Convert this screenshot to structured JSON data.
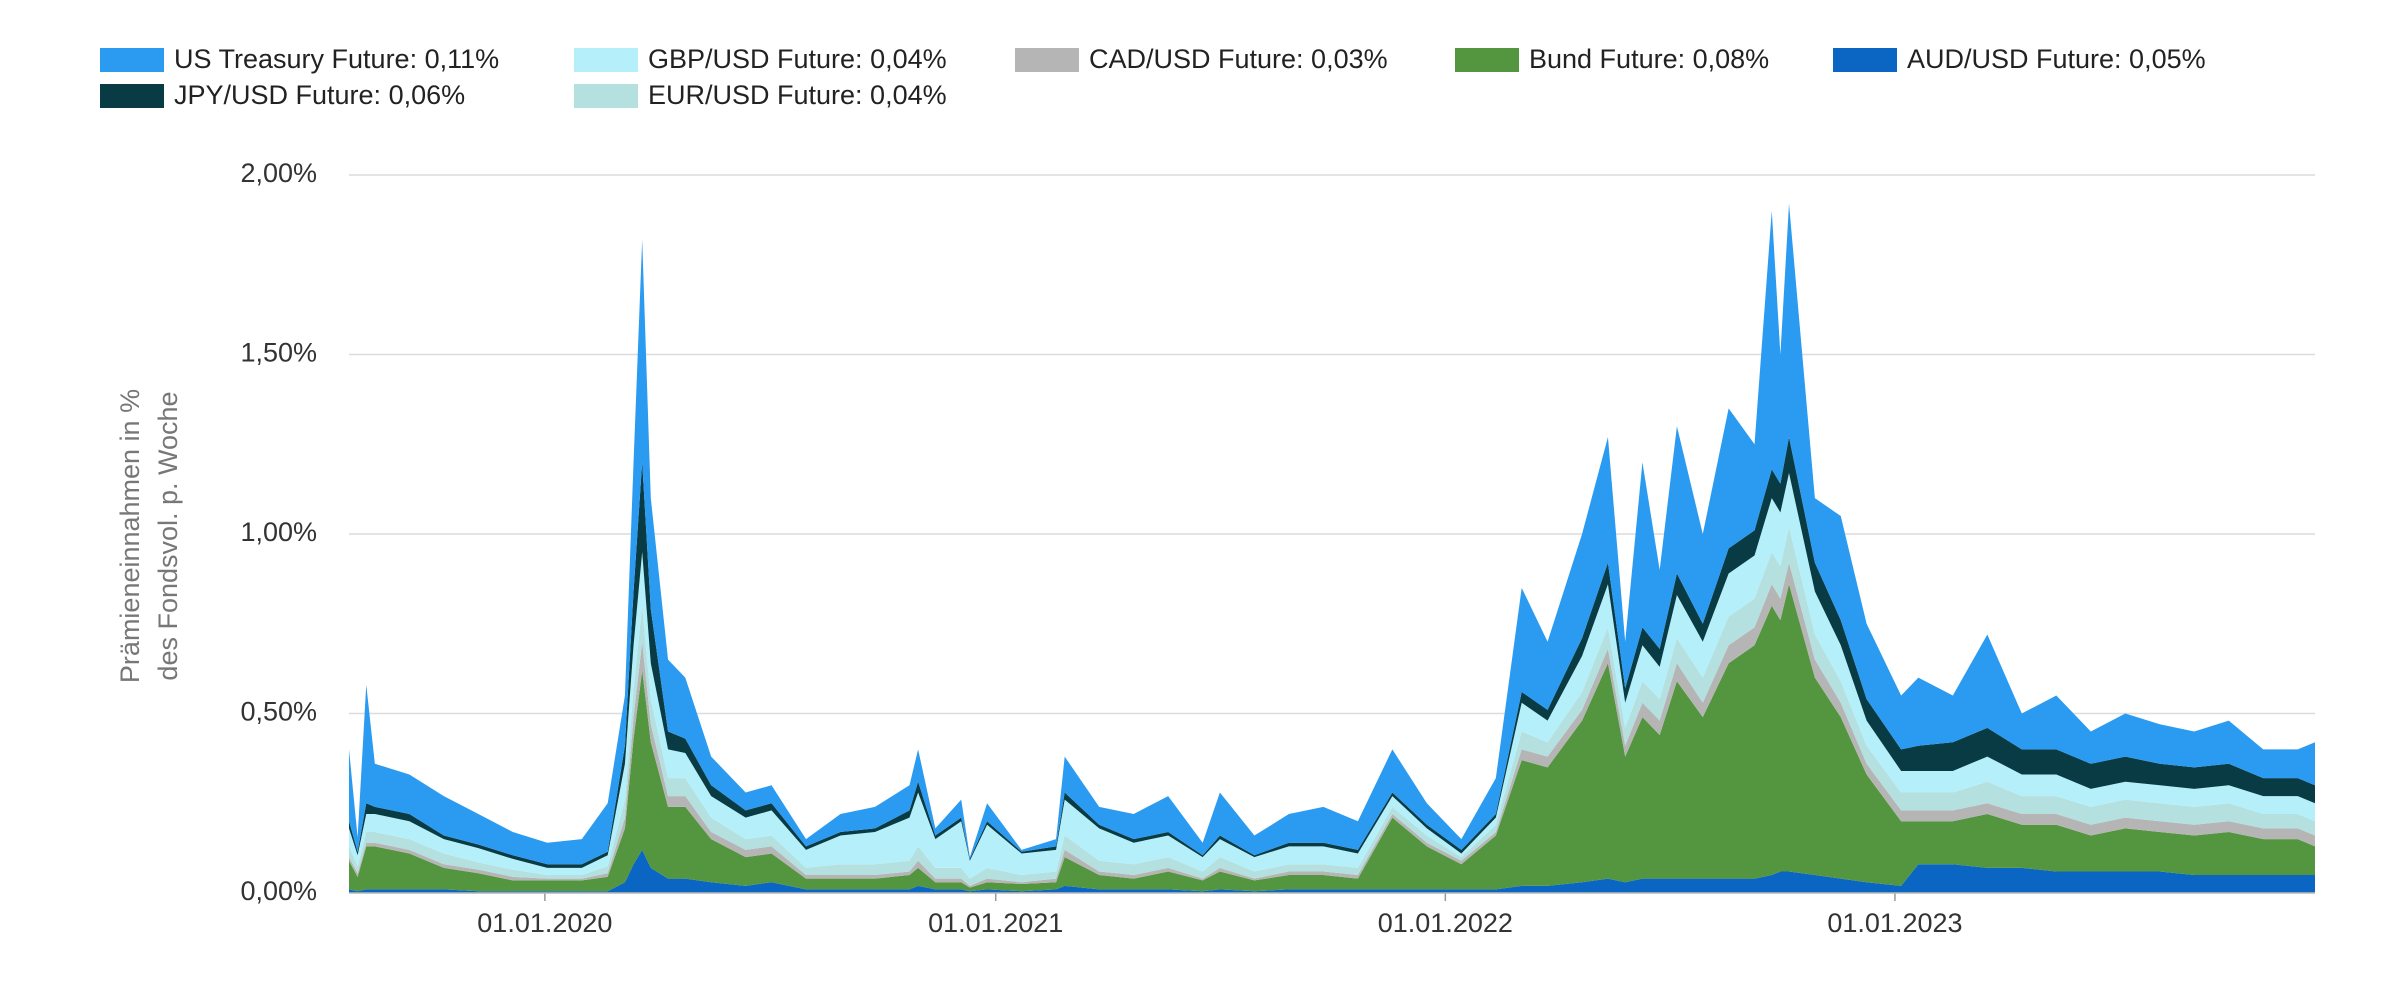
{
  "chart_data": {
    "type": "stacked_area",
    "ylabel": [
      "Prämieneinnahmen in %",
      "des Fondsvol. p. Woche"
    ],
    "x": [
      "26.07.2019",
      "02.08.2019",
      "09.08.2019",
      "16.08.2019",
      "13.09.2019",
      "11.10.2019",
      "08.11.2019",
      "06.12.2019",
      "03.01.2020",
      "31.01.2020",
      "21.02.2020",
      "06.03.2020",
      "13.03.2020",
      "20.03.2020",
      "27.03.2020",
      "10.04.2020",
      "24.04.2020",
      "15.05.2020",
      "12.06.2020",
      "03.07.2020",
      "31.07.2020",
      "28.08.2020",
      "25.09.2020",
      "23.10.2020",
      "30.10.2020",
      "13.11.2020",
      "04.12.2020",
      "11.12.2020",
      "25.12.2020",
      "22.01.2021",
      "19.02.2021",
      "26.02.2021",
      "26.03.2021",
      "23.04.2021",
      "21.05.2021",
      "18.06.2021",
      "02.07.2021",
      "30.07.2021",
      "27.08.2021",
      "24.09.2021",
      "22.10.2021",
      "19.11.2021",
      "17.12.2021",
      "14.01.2022",
      "11.02.2022",
      "04.03.2022",
      "25.03.2022",
      "22.04.2022",
      "13.05.2022",
      "27.05.2022",
      "10.06.2022",
      "24.06.2022",
      "08.07.2022",
      "29.07.2022",
      "19.08.2022",
      "09.09.2022",
      "23.09.2022",
      "30.09.2022",
      "07.10.2022",
      "28.10.2022",
      "18.11.2022",
      "09.12.2022",
      "06.01.2023",
      "20.01.2023",
      "17.02.2023",
      "17.03.2023",
      "14.04.2023",
      "12.05.2023",
      "09.06.2023",
      "07.07.2023",
      "04.08.2023",
      "01.09.2023",
      "29.09.2023",
      "27.10.2023",
      "24.11.2023",
      "08.12.2023"
    ],
    "xlim": [
      "26.07.2019",
      "08.12.2023"
    ],
    "xticks": [
      "01.01.2020",
      "01.01.2021",
      "01.01.2022",
      "01.01.2023"
    ],
    "ylim": [
      0,
      2
    ],
    "yticks": [
      {
        "value": 0,
        "label": "0,00%"
      },
      {
        "value": 0.5,
        "label": "0,50%"
      },
      {
        "value": 1,
        "label": "1,00%"
      },
      {
        "value": 1.5,
        "label": "1,50%"
      },
      {
        "value": 2,
        "label": "2,00%"
      }
    ],
    "grid": true,
    "series": [
      {
        "name": "US Treasury Future: 0,11%",
        "color": "#2b9bf2",
        "values": [
          0.2,
          0.04,
          0.33,
          0.12,
          0.11,
          0.11,
          0.085,
          0.065,
          0.06,
          0.07,
          0.135,
          0.14,
          0.36,
          0.62,
          0.31,
          0.2,
          0.17,
          0.08,
          0.05,
          0.05,
          0.02,
          0.05,
          0.06,
          0.07,
          0.09,
          0.02,
          0.05,
          0.005,
          0.05,
          0.005,
          0.02,
          0.1,
          0.05,
          0.07,
          0.1,
          0.035,
          0.12,
          0.055,
          0.08,
          0.1,
          0.08,
          0.12,
          0.06,
          0.03,
          0.1,
          0.29,
          0.19,
          0.29,
          0.35,
          0.13,
          0.46,
          0.22,
          0.41,
          0.25,
          0.39,
          0.24,
          0.72,
          0.36,
          0.65,
          0.18,
          0.29,
          0.21,
          0.15,
          0.19,
          0.13,
          0.26,
          0.1,
          0.15,
          0.09,
          0.12,
          0.11,
          0.1,
          0.12,
          0.08,
          0.08,
          0.12
        ]
      },
      {
        "name": "GBP/USD Future: 0,04%",
        "color": "#b5f0fa",
        "values": [
          0.05,
          0.03,
          0.05,
          0.05,
          0.05,
          0.04,
          0.04,
          0.03,
          0.02,
          0.02,
          0.03,
          0.1,
          0.12,
          0.15,
          0.1,
          0.08,
          0.07,
          0.06,
          0.06,
          0.07,
          0.05,
          0.08,
          0.09,
          0.12,
          0.15,
          0.08,
          0.13,
          0.05,
          0.12,
          0.06,
          0.06,
          0.1,
          0.09,
          0.06,
          0.06,
          0.04,
          0.05,
          0.04,
          0.05,
          0.05,
          0.04,
          0.03,
          0.02,
          0.01,
          0.02,
          0.08,
          0.06,
          0.1,
          0.12,
          0.07,
          0.1,
          0.09,
          0.12,
          0.1,
          0.12,
          0.12,
          0.15,
          0.15,
          0.15,
          0.12,
          0.1,
          0.07,
          0.06,
          0.06,
          0.06,
          0.07,
          0.06,
          0.06,
          0.05,
          0.05,
          0.05,
          0.05,
          0.05,
          0.05,
          0.05,
          0.05
        ]
      },
      {
        "name": "CAD/USD Future: 0,03%",
        "color": "#b5b5b5",
        "values": [
          0.01,
          0.01,
          0.01,
          0.01,
          0.01,
          0.01,
          0.01,
          0.01,
          0.005,
          0.005,
          0.01,
          0.03,
          0.06,
          0.08,
          0.05,
          0.03,
          0.03,
          0.02,
          0.02,
          0.02,
          0.01,
          0.01,
          0.01,
          0.01,
          0.02,
          0.01,
          0.01,
          0.005,
          0.01,
          0.005,
          0.01,
          0.02,
          0.01,
          0.01,
          0.01,
          0.005,
          0.01,
          0.005,
          0.01,
          0.01,
          0.01,
          0.01,
          0.01,
          0.01,
          0.01,
          0.03,
          0.03,
          0.03,
          0.04,
          0.03,
          0.04,
          0.04,
          0.05,
          0.04,
          0.05,
          0.05,
          0.06,
          0.06,
          0.06,
          0.05,
          0.04,
          0.03,
          0.03,
          0.03,
          0.03,
          0.03,
          0.03,
          0.03,
          0.03,
          0.03,
          0.03,
          0.03,
          0.03,
          0.03,
          0.03,
          0.03
        ]
      },
      {
        "name": "Bund Future: 0,08%",
        "color": "#54963f",
        "values": [
          0.08,
          0.04,
          0.12,
          0.12,
          0.1,
          0.06,
          0.05,
          0.03,
          0.03,
          0.03,
          0.04,
          0.15,
          0.35,
          0.5,
          0.35,
          0.2,
          0.2,
          0.12,
          0.08,
          0.08,
          0.03,
          0.03,
          0.03,
          0.04,
          0.05,
          0.02,
          0.02,
          0.01,
          0.02,
          0.02,
          0.02,
          0.08,
          0.04,
          0.03,
          0.05,
          0.03,
          0.05,
          0.03,
          0.04,
          0.04,
          0.03,
          0.2,
          0.12,
          0.07,
          0.15,
          0.35,
          0.33,
          0.45,
          0.6,
          0.35,
          0.45,
          0.4,
          0.55,
          0.45,
          0.6,
          0.65,
          0.75,
          0.7,
          0.8,
          0.55,
          0.45,
          0.3,
          0.18,
          0.12,
          0.12,
          0.15,
          0.12,
          0.13,
          0.1,
          0.12,
          0.11,
          0.11,
          0.12,
          0.1,
          0.1,
          0.08
        ]
      },
      {
        "name": "AUD/USD Future: 0,05%",
        "color": "#0a66c2",
        "values": [
          0.01,
          0.005,
          0.01,
          0.01,
          0.01,
          0.01,
          0.005,
          0.005,
          0.005,
          0.005,
          0.005,
          0.03,
          0.08,
          0.12,
          0.07,
          0.04,
          0.04,
          0.03,
          0.02,
          0.03,
          0.01,
          0.01,
          0.01,
          0.01,
          0.02,
          0.01,
          0.01,
          0.005,
          0.01,
          0.005,
          0.01,
          0.02,
          0.01,
          0.01,
          0.01,
          0.005,
          0.01,
          0.005,
          0.01,
          0.01,
          0.01,
          0.01,
          0.01,
          0.01,
          0.01,
          0.02,
          0.02,
          0.03,
          0.04,
          0.03,
          0.04,
          0.04,
          0.04,
          0.04,
          0.04,
          0.04,
          0.05,
          0.06,
          0.06,
          0.05,
          0.04,
          0.03,
          0.02,
          0.08,
          0.08,
          0.07,
          0.07,
          0.06,
          0.06,
          0.06,
          0.06,
          0.05,
          0.05,
          0.05,
          0.05,
          0.05
        ]
      },
      {
        "name": "JPY/USD Future: 0,06%",
        "color": "#093b45",
        "values": [
          0.02,
          0.01,
          0.03,
          0.02,
          0.02,
          0.01,
          0.01,
          0.01,
          0.01,
          0.01,
          0.01,
          0.05,
          0.15,
          0.25,
          0.15,
          0.05,
          0.04,
          0.03,
          0.02,
          0.02,
          0.01,
          0.01,
          0.01,
          0.02,
          0.03,
          0.01,
          0.01,
          0.005,
          0.01,
          0.005,
          0.01,
          0.02,
          0.01,
          0.01,
          0.01,
          0.005,
          0.01,
          0.005,
          0.01,
          0.01,
          0.01,
          0.01,
          0.01,
          0.01,
          0.01,
          0.03,
          0.03,
          0.05,
          0.06,
          0.04,
          0.05,
          0.05,
          0.06,
          0.05,
          0.07,
          0.07,
          0.08,
          0.08,
          0.1,
          0.08,
          0.07,
          0.06,
          0.06,
          0.07,
          0.08,
          0.08,
          0.07,
          0.07,
          0.07,
          0.07,
          0.06,
          0.06,
          0.06,
          0.05,
          0.05,
          0.05
        ]
      },
      {
        "name": "EUR/USD Future: 0,04%",
        "color": "#b5e0e0",
        "values": [
          0.03,
          0.02,
          0.03,
          0.03,
          0.03,
          0.03,
          0.02,
          0.02,
          0.01,
          0.01,
          0.02,
          0.05,
          0.08,
          0.1,
          0.07,
          0.05,
          0.05,
          0.04,
          0.03,
          0.03,
          0.02,
          0.03,
          0.03,
          0.03,
          0.04,
          0.03,
          0.03,
          0.02,
          0.03,
          0.02,
          0.02,
          0.04,
          0.03,
          0.03,
          0.03,
          0.02,
          0.03,
          0.02,
          0.02,
          0.02,
          0.02,
          0.02,
          0.02,
          0.01,
          0.02,
          0.05,
          0.04,
          0.05,
          0.06,
          0.05,
          0.06,
          0.06,
          0.07,
          0.07,
          0.08,
          0.08,
          0.09,
          0.09,
          0.1,
          0.07,
          0.06,
          0.05,
          0.05,
          0.05,
          0.05,
          0.06,
          0.05,
          0.05,
          0.05,
          0.05,
          0.05,
          0.05,
          0.05,
          0.04,
          0.04,
          0.04
        ]
      }
    ]
  }
}
